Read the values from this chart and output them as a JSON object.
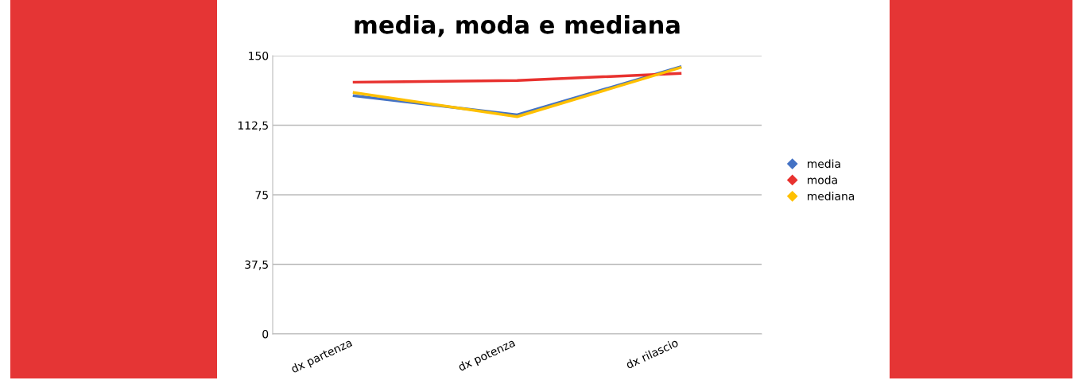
{
  "chart_data": {
    "type": "line",
    "title": "media, moda e mediana",
    "categories": [
      "dx partenza",
      "dx potenza",
      "dx rilascio"
    ],
    "series": [
      {
        "name": "media",
        "color": "#4472c4",
        "values": [
          128.4,
          118.1,
          143.9
        ]
      },
      {
        "name": "moda",
        "color": "#e8322f",
        "values": [
          135.7,
          136.6,
          140.4
        ]
      },
      {
        "name": "mediana",
        "color": "#ffc000",
        "values": [
          130.1,
          117.1,
          143.5
        ]
      }
    ],
    "ylim": [
      0,
      150
    ],
    "yticks": [
      0,
      {
        "value": 37.5,
        "label": "37,5"
      },
      75,
      {
        "value": 112.5,
        "label": "112,5"
      },
      150
    ],
    "grid": "y",
    "legend": "right",
    "marker": "none",
    "line_style": "solid"
  }
}
